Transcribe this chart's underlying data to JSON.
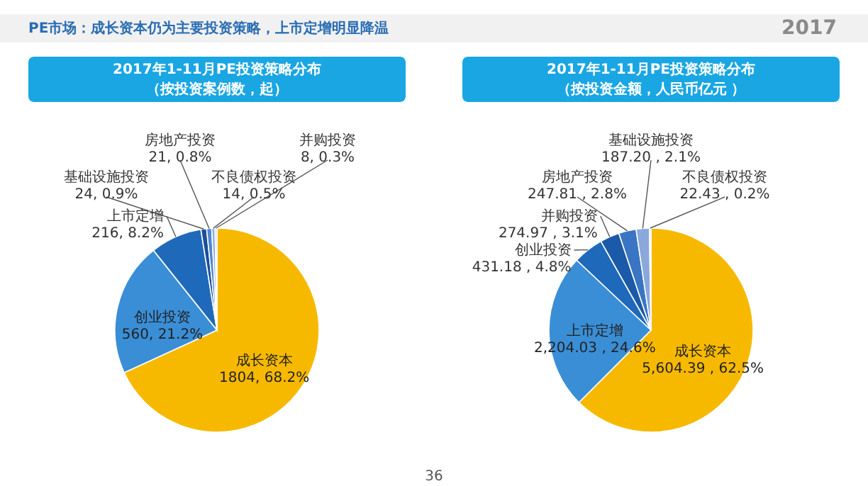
{
  "chart_data": [
    {
      "type": "pie",
      "title": "2017年1-11月PE投资策略分布",
      "subtitle": "（按投资案例数，起）",
      "annotations": [
        "PE市场：成长资本仍为主要投资策略，上市定增明显降温",
        "2017",
        "36"
      ],
      "categories": [
        "成长资本",
        "创业投资",
        "上市定增",
        "基础设施投资",
        "房地产投资",
        "不良债权投资",
        "并购投资"
      ],
      "values": [
        1804,
        560,
        216,
        24,
        21,
        14,
        8
      ],
      "value_labels": [
        "1804, 68.2%",
        "560, 21.2%",
        "216, 8.2%",
        "24, 0.9%",
        "21, 0.8%",
        "14, 0.5%",
        "8, 0.3%"
      ],
      "colors": [
        "#f7b900",
        "#3a8ed6",
        "#1f69bb",
        "#1b4f99",
        "#4f86cf",
        "#8fb0e0",
        "#c3d2ea"
      ]
    },
    {
      "type": "pie",
      "title": "2017年1-11月PE投资策略分布",
      "subtitle": "（按投资金额，人民币亿元 ）",
      "categories": [
        "成长资本",
        "上市定增",
        "创业投资",
        "并购投资",
        "房地产投资",
        "基础设施投资",
        "不良债权投资"
      ],
      "values": [
        5604.39,
        2204.03,
        431.18,
        274.97,
        247.81,
        187.2,
        22.43
      ],
      "value_labels": [
        "5,604.39 , 62.5%",
        "2,204.03 , 24.6%",
        "431.18 , 4.8%",
        "274.97 , 3.1%",
        "247.81 , 2.8%",
        "187.20 , 2.1%",
        "22.43 , 0.2%"
      ],
      "colors": [
        "#f7b900",
        "#3a8ed6",
        "#1f69bb",
        "#1b5aa8",
        "#3a75c4",
        "#8aa8dc",
        "#c5d3ea"
      ]
    }
  ]
}
